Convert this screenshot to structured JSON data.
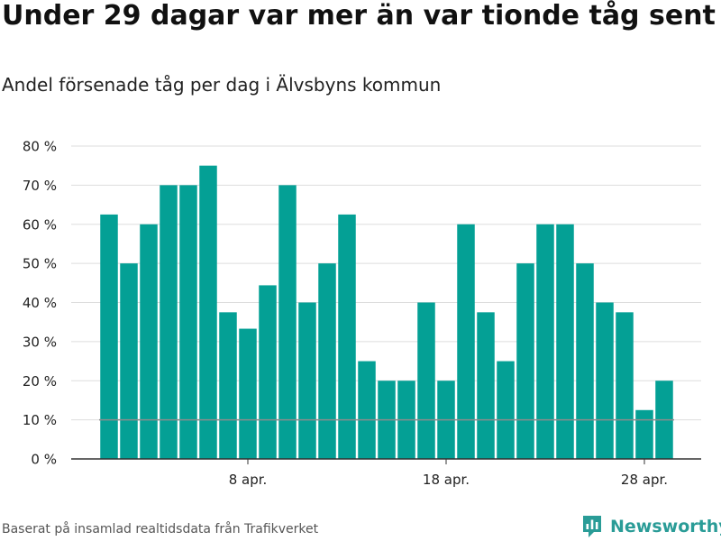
{
  "header": {
    "title": "Under 29 dagar var mer än var tionde tåg sent",
    "subtitle": "Andel försenade tåg per dag i Älvsbyns kommun"
  },
  "footer": {
    "source": "Baserat på insamlad realtidsdata från Trafikverket",
    "brand": "Newsworthy"
  },
  "colors": {
    "bar": "#04a095",
    "reference_line": "#8c8c8c",
    "grid": "#dddddd",
    "brand": "#2a9c97"
  },
  "chart_data": {
    "type": "bar",
    "x": [
      "2024-04-01",
      "2024-04-02",
      "2024-04-03",
      "2024-04-04",
      "2024-04-05",
      "2024-04-06",
      "2024-04-07",
      "2024-04-08",
      "2024-04-09",
      "2024-04-10",
      "2024-04-11",
      "2024-04-12",
      "2024-04-13",
      "2024-04-14",
      "2024-04-15",
      "2024-04-16",
      "2024-04-17",
      "2024-04-18",
      "2024-04-19",
      "2024-04-20",
      "2024-04-21",
      "2024-04-22",
      "2024-04-23",
      "2024-04-24",
      "2024-04-25",
      "2024-04-26",
      "2024-04-27",
      "2024-04-28",
      "2024-04-29"
    ],
    "values": [
      62.5,
      50,
      60,
      70,
      70,
      75,
      37.5,
      33.3,
      44.4,
      70,
      40,
      50,
      62.5,
      25,
      20,
      20,
      40,
      20,
      60,
      37.5,
      25,
      50,
      60,
      60,
      50,
      40,
      37.5,
      12.5,
      20
    ],
    "ylim": [
      0,
      80
    ],
    "yticks": [
      0,
      10,
      20,
      30,
      40,
      50,
      60,
      70,
      80
    ],
    "ytick_labels": [
      "0 %",
      "10 %",
      "20 %",
      "30 %",
      "40 %",
      "50 %",
      "60 %",
      "70 %",
      "80 %"
    ],
    "xtick_labels": [
      {
        "x": "2024-04-08",
        "label": "8 apr."
      },
      {
        "x": "2024-04-18",
        "label": "18 apr."
      },
      {
        "x": "2024-04-28",
        "label": "28 apr."
      }
    ],
    "reference_line": 10,
    "grid": true
  }
}
